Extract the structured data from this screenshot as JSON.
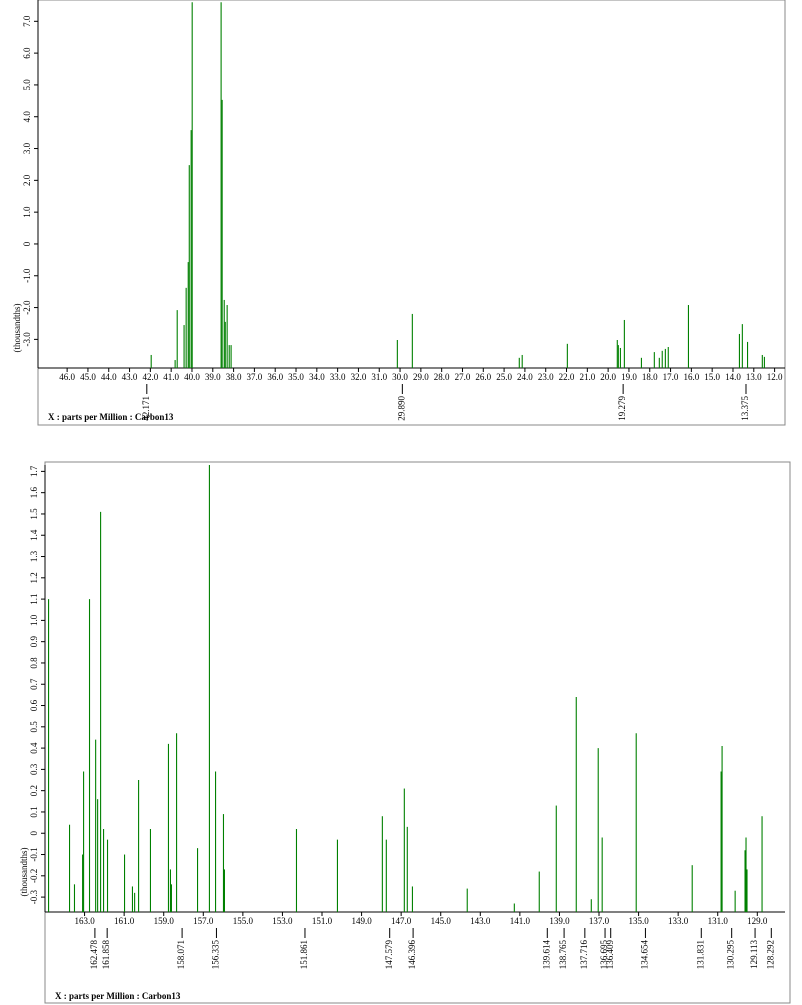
{
  "chart_data": [
    {
      "type": "stem",
      "x_label": "X : parts per Million : Carbon13",
      "y_label": "(thousandths)",
      "xlim": [
        47.4,
        11.5
      ],
      "ylim": [
        -3.9,
        7.67
      ],
      "xticks": [
        {
          "value": 46,
          "label": "46.0"
        },
        {
          "value": 45,
          "label": "45.0"
        },
        {
          "value": 44,
          "label": "44.0"
        },
        {
          "value": 43,
          "label": "43.0"
        },
        {
          "value": 42,
          "label": "42.0"
        },
        {
          "value": 41,
          "label": "41.0"
        },
        {
          "value": 40,
          "label": "40.0"
        },
        {
          "value": 39,
          "label": "39.0"
        },
        {
          "value": 38,
          "label": "38.0"
        },
        {
          "value": 37,
          "label": "37.0"
        },
        {
          "value": 36,
          "label": "36.0"
        },
        {
          "value": 35,
          "label": "35.0"
        },
        {
          "value": 34,
          "label": "34.0"
        },
        {
          "value": 33,
          "label": "33.0"
        },
        {
          "value": 32,
          "label": "32.0"
        },
        {
          "value": 31,
          "label": "31.0"
        },
        {
          "value": 30,
          "label": "30.0"
        },
        {
          "value": 29,
          "label": "29.0"
        },
        {
          "value": 28,
          "label": "28.0"
        },
        {
          "value": 27,
          "label": "27.0"
        },
        {
          "value": 26,
          "label": "26.0"
        },
        {
          "value": 25,
          "label": "25.0"
        },
        {
          "value": 24,
          "label": "24.0"
        },
        {
          "value": 23,
          "label": "23.0"
        },
        {
          "value": 22,
          "label": "22.0"
        },
        {
          "value": 21,
          "label": "21.0"
        },
        {
          "value": 20,
          "label": "20.0"
        },
        {
          "value": 19,
          "label": "19.0"
        },
        {
          "value": 18,
          "label": "18.0"
        },
        {
          "value": 17,
          "label": "17.0"
        },
        {
          "value": 16,
          "label": "16.0"
        },
        {
          "value": 15,
          "label": "15.0"
        },
        {
          "value": 14,
          "label": "14.0"
        },
        {
          "value": 13,
          "label": "13.0"
        },
        {
          "value": 12,
          "label": "12.0"
        }
      ],
      "yticks": [
        {
          "value": 7,
          "label": "7.0"
        },
        {
          "value": 6,
          "label": "6.0"
        },
        {
          "value": 5,
          "label": "5.0"
        },
        {
          "value": 4,
          "label": "4.0"
        },
        {
          "value": 3,
          "label": "3.0"
        },
        {
          "value": 2,
          "label": "2.0"
        },
        {
          "value": 1,
          "label": "1.0"
        },
        0,
        {
          "value": -1,
          "label": "-1.0"
        },
        {
          "value": -2,
          "label": "-2.0"
        },
        {
          "value": -3,
          "label": "-3.0"
        }
      ],
      "peak_labels": [
        42.171,
        {
          "value": 29.89,
          "label": "29.890"
        },
        19.279,
        13.375
      ],
      "series": [
        {
          "color": "#008000",
          "x": [
            41.96,
            40.81,
            40.71,
            40.38,
            40.28,
            40.18,
            40.13,
            40.04,
            39.99,
            38.6,
            38.55,
            38.45,
            38.4,
            38.31,
            38.21,
            38.12,
            30.13,
            29.41,
            24.27,
            24.13,
            21.96,
            19.56,
            19.51,
            19.41,
            19.22,
            18.4,
            17.78,
            17.54,
            17.4,
            17.25,
            17.11,
            16.14,
            13.69,
            13.55,
            13.3,
            12.59,
            12.49
          ],
          "values": [
            -3.49,
            -3.65,
            -2.08,
            -2.55,
            -1.38,
            -0.57,
            2.48,
            3.58,
            7.6,
            7.6,
            4.53,
            -1.76,
            -2.45,
            -1.92,
            -3.18,
            -3.18,
            -3.02,
            -2.2,
            -3.58,
            -3.49,
            -3.14,
            -3.02,
            -3.18,
            -3.27,
            -2.39,
            -3.58,
            -3.4,
            -3.58,
            -3.36,
            -3.3,
            -3.24,
            -1.92,
            -2.83,
            -2.52,
            -3.08,
            -3.49,
            -3.55
          ]
        }
      ]
    },
    {
      "type": "stem",
      "x_label": "X : parts per Million : Carbon13",
      "y_label": "(thousandths)",
      "xlim": [
        165.0,
        127.6
      ],
      "ylim": [
        -0.37,
        1.73
      ],
      "xticks": [
        {
          "value": 163,
          "label": "163.0"
        },
        {
          "value": 161,
          "label": "161.0"
        },
        {
          "value": 159,
          "label": "159.0"
        },
        {
          "value": 157,
          "label": "157.0"
        },
        {
          "value": 155,
          "label": "155.0"
        },
        {
          "value": 153,
          "label": "153.0"
        },
        {
          "value": 151,
          "label": "151.0"
        },
        {
          "value": 149,
          "label": "149.0"
        },
        {
          "value": 147,
          "label": "147.0"
        },
        {
          "value": 145,
          "label": "145.0"
        },
        {
          "value": 143,
          "label": "143.0"
        },
        {
          "value": 141,
          "label": "141.0"
        },
        {
          "value": 139,
          "label": "139.0"
        },
        {
          "value": 137,
          "label": "137.0"
        },
        {
          "value": 135,
          "label": "135.0"
        },
        {
          "value": 133,
          "label": "133.0"
        },
        {
          "value": 131,
          "label": "131.0"
        },
        {
          "value": 129,
          "label": "129.0"
        }
      ],
      "yticks": [
        1.7,
        1.6,
        1.5,
        1.4,
        1.3,
        1.2,
        1.1,
        {
          "value": 1,
          "label": "1.0"
        },
        0.9,
        0.8,
        0.7,
        0.6,
        0.5,
        0.4,
        0.3,
        0.2,
        0.1,
        0,
        -0.1,
        -0.2,
        -0.3
      ],
      "peak_labels": [
        162.478,
        161.858,
        158.071,
        156.335,
        151.861,
        147.579,
        146.396,
        139.614,
        138.765,
        137.716,
        136.695,
        136.409,
        134.654,
        131.831,
        130.295,
        129.113,
        128.292
      ],
      "series": [
        {
          "color": "#008000",
          "x": [
            164.82,
            163.76,
            163.51,
            163.1,
            163.05,
            162.75,
            162.44,
            162.34,
            162.19,
            162.04,
            161.84,
            160.98,
            160.58,
            160.47,
            160.27,
            159.67,
            158.76,
            158.66,
            158.61,
            158.35,
            157.29,
            156.69,
            156.38,
            155.98,
            155.93,
            152.29,
            150.22,
            147.95,
            147.75,
            146.84,
            146.69,
            146.43,
            143.66,
            141.28,
            140.02,
            139.16,
            138.15,
            137.39,
            137.04,
            136.84,
            135.12,
            132.29,
            130.83,
            130.78,
            130.12,
            129.62,
            129.57,
            129.52,
            128.76
          ],
          "values": [
            1.1,
            0.04,
            -0.24,
            -0.1,
            0.29,
            1.1,
            0.44,
            0.16,
            1.51,
            0.02,
            -0.03,
            -0.1,
            -0.25,
            -0.28,
            0.25,
            0.02,
            0.42,
            -0.17,
            -0.24,
            0.47,
            -0.07,
            1.73,
            0.29,
            0.09,
            -0.17,
            0.02,
            -0.03,
            0.08,
            -0.03,
            0.21,
            0.03,
            -0.25,
            -0.26,
            -0.33,
            -0.18,
            0.13,
            0.64,
            -0.31,
            0.4,
            -0.02,
            0.47,
            -0.15,
            0.29,
            0.41,
            -0.27,
            -0.08,
            -0.02,
            -0.17,
            0.08
          ]
        }
      ]
    }
  ]
}
